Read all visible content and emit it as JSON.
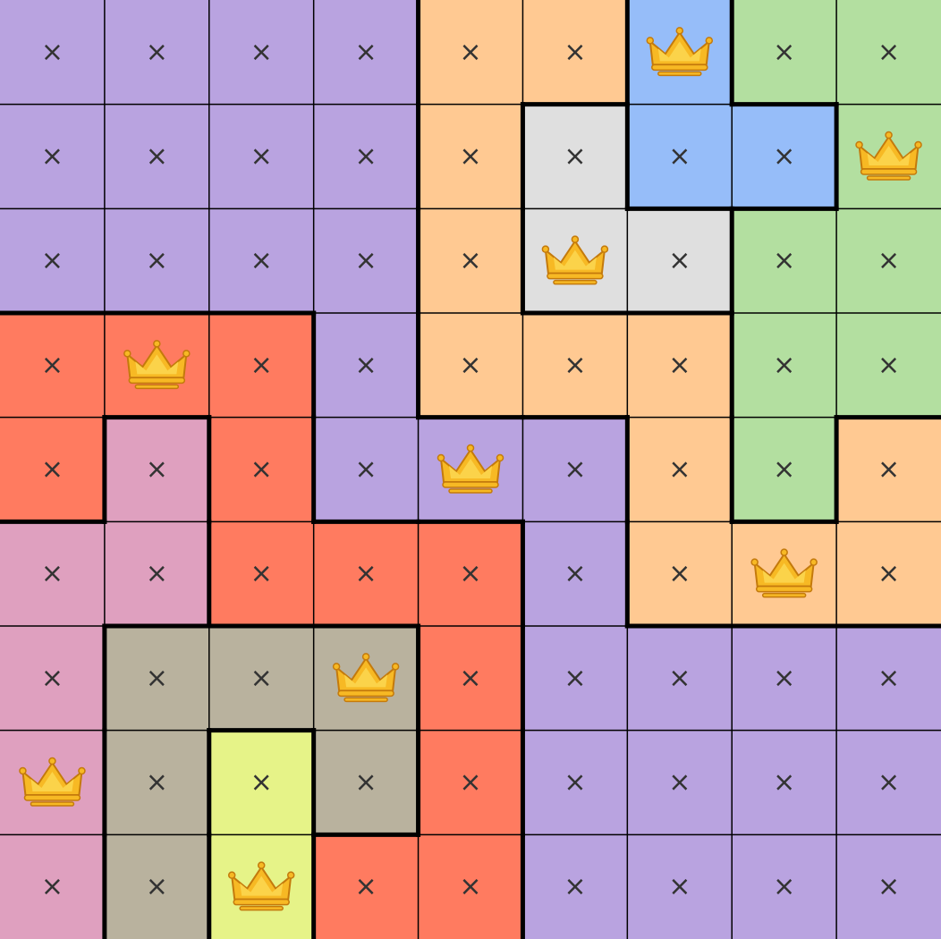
{
  "board": {
    "region_colors": {
      "purple": "#b9a3e0",
      "orange": "#ffc992",
      "blue": "#96bdf9",
      "green": "#b3dfa0",
      "gray": "#dfdfdf",
      "red": "#ff7b60",
      "pink": "#dfa0bf",
      "tan": "#b9b29e",
      "yellow": "#e6f388"
    },
    "regions": [
      [
        "purple",
        "purple",
        "purple",
        "purple",
        "orange",
        "orange",
        "blue",
        "green",
        "green"
      ],
      [
        "purple",
        "purple",
        "purple",
        "purple",
        "orange",
        "gray",
        "blue",
        "blue",
        "green"
      ],
      [
        "purple",
        "purple",
        "purple",
        "purple",
        "orange",
        "gray",
        "gray",
        "green",
        "green"
      ],
      [
        "red",
        "red",
        "red",
        "purple",
        "orange",
        "orange",
        "orange",
        "green",
        "green"
      ],
      [
        "red",
        "pink",
        "red",
        "purple",
        "purple",
        "purple",
        "orange",
        "green",
        "orange"
      ],
      [
        "pink",
        "pink",
        "red",
        "red",
        "red",
        "purple",
        "orange",
        "orange",
        "orange"
      ],
      [
        "pink",
        "tan",
        "tan",
        "tan",
        "red",
        "purple",
        "purple",
        "purple",
        "purple"
      ],
      [
        "pink",
        "tan",
        "yellow",
        "tan",
        "red",
        "purple",
        "purple",
        "purple",
        "purple"
      ],
      [
        "pink",
        "tan",
        "yellow",
        "red",
        "red",
        "purple",
        "purple",
        "purple",
        "purple"
      ]
    ],
    "marks": [
      [
        "×",
        "×",
        "×",
        "×",
        "×",
        "×",
        null,
        "×",
        "×"
      ],
      [
        "×",
        "×",
        "×",
        "×",
        "×",
        "×",
        "×",
        "×",
        null
      ],
      [
        "×",
        "×",
        "×",
        "×",
        "×",
        null,
        "×",
        "×",
        "×"
      ],
      [
        "×",
        null,
        "×",
        "×",
        "×",
        "×",
        "×",
        "×",
        "×"
      ],
      [
        "×",
        "×",
        "×",
        "×",
        null,
        "×",
        "×",
        "×",
        "×"
      ],
      [
        "×",
        "×",
        "×",
        "×",
        "×",
        "×",
        "×",
        null,
        "×"
      ],
      [
        "×",
        "×",
        "×",
        null,
        "×",
        "×",
        "×",
        "×",
        "×"
      ],
      [
        null,
        "×",
        "×",
        "×",
        "×",
        "×",
        "×",
        "×",
        "×"
      ],
      [
        "×",
        "×",
        null,
        "×",
        "×",
        "×",
        "×",
        "×",
        "×"
      ]
    ]
  }
}
